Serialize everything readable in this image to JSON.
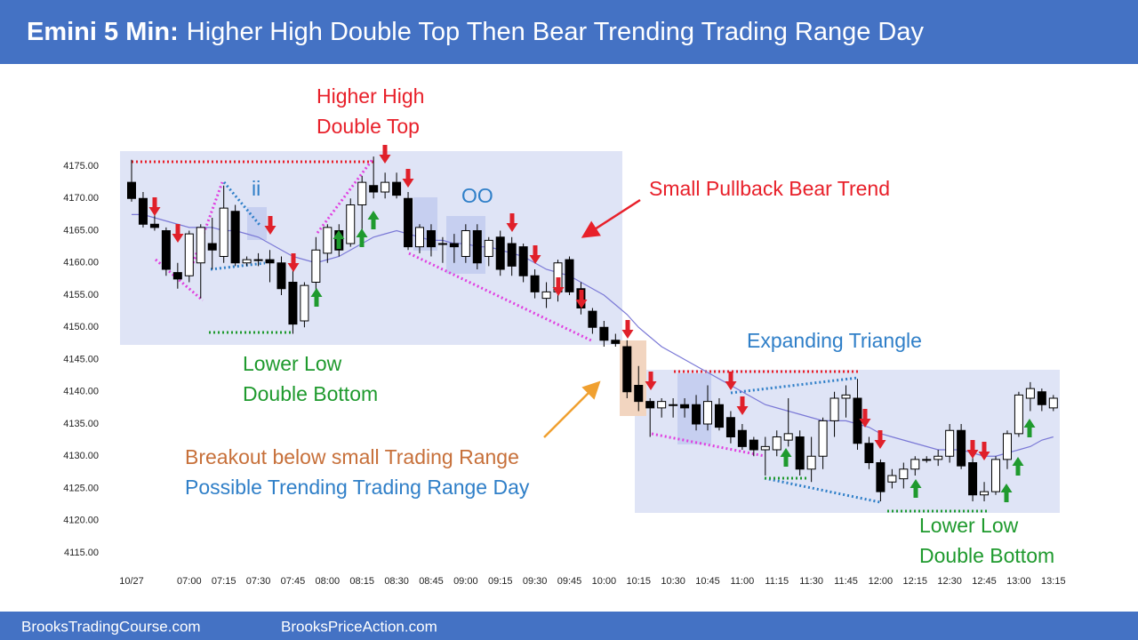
{
  "header": {
    "title_prefix": "Emini 5 Min:",
    "title": "Higher High Double Top Then Bear Trending Trading Range Day"
  },
  "chart_data": {
    "type": "candlestick",
    "categories": [
      "10/27",
      null,
      null,
      null,
      null,
      "07:00",
      null,
      null,
      "07:15",
      null,
      null,
      "07:30",
      null,
      null,
      "07:45",
      null,
      null,
      "08:00",
      null,
      null,
      "08:15",
      null,
      null,
      "08:30",
      null,
      null,
      "08:45",
      null,
      null,
      "09:00",
      null,
      null,
      "09:15",
      null,
      null,
      "09:30",
      null,
      null,
      "09:45",
      null,
      null,
      "10:00",
      null,
      null,
      "10:15",
      null,
      null,
      "10:30",
      null,
      null,
      "10:45",
      null,
      null,
      "11:00",
      null,
      null,
      "11:15",
      null,
      null,
      "11:30",
      null,
      null,
      "11:45",
      null,
      null,
      "12:00",
      null,
      null,
      "12:15",
      null,
      null,
      "12:30",
      null,
      null,
      "12:45",
      null,
      null,
      "13:00",
      null,
      null,
      "13:15"
    ],
    "open": [
      4172.5,
      4170,
      4166,
      4165,
      4158.5,
      4158,
      4160,
      4163,
      4161,
      4168,
      4160,
      4160.5,
      4160.5,
      4160,
      4157,
      4151,
      4157,
      4161.5,
      4165,
      4163,
      4169,
      4172,
      4171,
      4172.5,
      4170,
      4162.5,
      4165,
      4163,
      4163,
      4161,
      4165,
      4161,
      4164,
      4163,
      4162.5,
      4158,
      4154.5,
      4155.5,
      4160.5,
      4156,
      4152.5,
      4150,
      4148,
      4147,
      4141,
      4138.5,
      4137.5,
      4138,
      4138,
      4138,
      4135,
      4138,
      4136,
      4134,
      4132.5,
      4131,
      4131,
      4132.5,
      4133,
      4128,
      4130,
      4135.5,
      4139,
      4139,
      4132,
      4129,
      4126,
      4126.5,
      4128,
      4129.5,
      4129.5,
      4130,
      4134,
      4129,
      4124,
      4124.5,
      4129.5,
      4133.5,
      4139,
      4140,
      4137.5
    ],
    "high": [
      4176,
      4171,
      4167.5,
      4165.5,
      4160,
      4165,
      4166,
      4167,
      4172,
      4169,
      4161,
      4161.5,
      4162,
      4161,
      4160.5,
      4157,
      4164,
      4166,
      4166,
      4170,
      4173.5,
      4176.5,
      4174,
      4174,
      4171,
      4166,
      4166,
      4164,
      4164.5,
      4166,
      4166,
      4164,
      4165,
      4164,
      4163,
      4159,
      4157,
      4160.5,
      4161,
      4157,
      4153,
      4151,
      4149,
      4148,
      4144,
      4139,
      4139,
      4139,
      4139,
      4139.5,
      4141,
      4139,
      4137,
      4135,
      4133,
      4133,
      4134,
      4139,
      4134,
      4133,
      4136,
      4140,
      4141,
      4142,
      4133,
      4129.5,
      4128,
      4129,
      4130,
      4130,
      4131,
      4135,
      4135,
      4130,
      4126,
      4130,
      4134,
      4140,
      4141.5,
      4140.5,
      4139.5
    ],
    "low": [
      4169.5,
      4165.5,
      4165,
      4158,
      4156,
      4157,
      4154.5,
      4159,
      4160,
      4159.5,
      4159.5,
      4159.5,
      4157,
      4155,
      4149,
      4150,
      4155.5,
      4160,
      4161,
      4162.5,
      4165,
      4170,
      4170,
      4170,
      4162,
      4161.5,
      4161,
      4160,
      4160,
      4160,
      4159,
      4159.5,
      4158,
      4158,
      4157,
      4154.5,
      4153,
      4154,
      4155,
      4152,
      4149,
      4147,
      4147,
      4139,
      4137,
      4133,
      4136,
      4136,
      4136,
      4134,
      4134,
      4134,
      4132,
      4131,
      4130,
      4127,
      4130,
      4131.5,
      4127,
      4126,
      4128,
      4133,
      4136,
      4131,
      4128,
      4123,
      4125,
      4125,
      4127,
      4129,
      4128.5,
      4129,
      4128,
      4123,
      4123,
      4124,
      4128,
      4133,
      4137,
      4137,
      4137
    ],
    "close": [
      4170,
      4166,
      4165.5,
      4159,
      4157.5,
      4164.5,
      4165.5,
      4162,
      4168.5,
      4160,
      4160.5,
      4160.5,
      4160,
      4156,
      4150.5,
      4156.5,
      4162,
      4165.5,
      4162,
      4169,
      4172.5,
      4171,
      4172.5,
      4170.5,
      4162.5,
      4165.5,
      4162.5,
      4163,
      4162.5,
      4165,
      4160,
      4163.5,
      4159,
      4159.5,
      4158,
      4155.5,
      4155.5,
      4160,
      4155.5,
      4153,
      4150,
      4148,
      4147.5,
      4140,
      4138.5,
      4137.5,
      4138.5,
      4138,
      4137.5,
      4135,
      4138.5,
      4134.5,
      4133,
      4131.5,
      4131,
      4131.5,
      4133,
      4133.5,
      4128,
      4130,
      4135.5,
      4139,
      4139.5,
      4132,
      4129,
      4124.5,
      4127,
      4128,
      4129.5,
      4129.5,
      4130,
      4134,
      4128.5,
      4124,
      4124.5,
      4129.5,
      4133.5,
      4139.5,
      4140.5,
      4138,
      4139
    ],
    "moving_average": [
      4167.5,
      4167.5,
      4167,
      4166.5,
      4166,
      4165.5,
      4165.5,
      4165.5,
      4165,
      4165,
      4164.5,
      4164,
      4163,
      4162,
      4161,
      4160.5,
      4160,
      4160.5,
      4161,
      4162,
      4163,
      4164,
      4164.5,
      4165,
      4164.5,
      4164,
      4163.5,
      4163.5,
      4163,
      4163,
      4162.5,
      4162.5,
      4162,
      4161.5,
      4161,
      4160,
      4159,
      4158.5,
      4158,
      4157,
      4156,
      4155,
      4153.5,
      4152,
      4150,
      4148.5,
      4147,
      4146,
      4145,
      4144,
      4143,
      4142,
      4141,
      4140,
      4139,
      4138,
      4137.5,
      4137,
      4136.5,
      4136,
      4135.5,
      4135.5,
      4135.5,
      4135,
      4134.5,
      4133.5,
      4133,
      4132.5,
      4132,
      4131.5,
      4131,
      4131,
      4131,
      4130.5,
      4130,
      4130,
      4130.5,
      4131,
      4131.5,
      4132.5,
      4133
    ],
    "ma_color": "#7a78d6",
    "up_color": "#ffffff",
    "down_color": "#000000",
    "ylim": [
      4112,
      4178
    ],
    "yticks": [
      {
        "value": 4115,
        "label": "4115.00"
      },
      {
        "value": 4120,
        "label": "4120.00"
      },
      {
        "value": 4125,
        "label": "4125.00"
      },
      {
        "value": 4130,
        "label": "4130.00"
      },
      {
        "value": 4135,
        "label": "4135.00"
      },
      {
        "value": 4140,
        "label": "4140.00"
      },
      {
        "value": 4145,
        "label": "4145.00"
      },
      {
        "value": 4150,
        "label": "4150.00"
      },
      {
        "value": 4155,
        "label": "4155.00"
      },
      {
        "value": 4160,
        "label": "4160.00"
      },
      {
        "value": 4165,
        "label": "4165.00"
      },
      {
        "value": 4170,
        "label": "4170.00"
      },
      {
        "value": 4175,
        "label": "4175.00"
      }
    ],
    "annotations": {
      "higher_high": [
        "Higher High",
        "Double Top"
      ],
      "ii": "ii",
      "oo": "OO",
      "small_pullback": "Small Pullback Bear Trend",
      "lower_low_1": [
        "Lower Low",
        "Double Bottom"
      ],
      "expanding_triangle": "Expanding Triangle",
      "breakout": "Breakout below small Trading Range",
      "possible": "Possible Trending Trading Range Day",
      "lower_low_2": [
        "Lower Low",
        "Double Bottom"
      ]
    }
  },
  "footer": {
    "left": "BrooksTradingCourse.com",
    "right": "BrooksPriceAction.com"
  }
}
